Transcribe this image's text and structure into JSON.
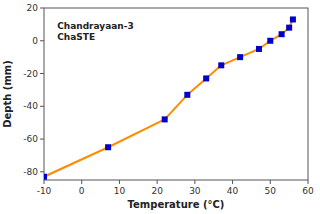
{
  "chart_data": {
    "type": "line",
    "title": "Chandrayaan-3",
    "subtitle": "ChaSTE",
    "x_label": "Temperature (°C)",
    "y_label": "Depth (mm)",
    "x": [
      -10,
      7,
      22,
      28,
      33,
      37,
      42,
      47,
      50,
      53,
      55,
      56
    ],
    "values": [
      -83,
      -65,
      -48,
      -33,
      -23,
      -15,
      -10,
      -5,
      0,
      4,
      8,
      13
    ],
    "color": "#FF8C00",
    "colors": [
      "#0000CD",
      "#0000CD",
      "#0000CD",
      "#0000CD",
      "#0000CD",
      "#0000CD",
      "#0000CD",
      "#0000CD",
      "#0000CD",
      "#0000CD",
      "#0000CD",
      "#0000CD"
    ],
    "marker": "square",
    "xlim": [
      -10,
      60
    ],
    "ylim": [
      -85,
      20
    ],
    "xticks": [
      -10,
      0,
      10,
      20,
      30,
      40,
      50,
      60
    ],
    "yticks": [
      -80,
      -60,
      -40,
      -20,
      0,
      20
    ],
    "grid": false
  }
}
